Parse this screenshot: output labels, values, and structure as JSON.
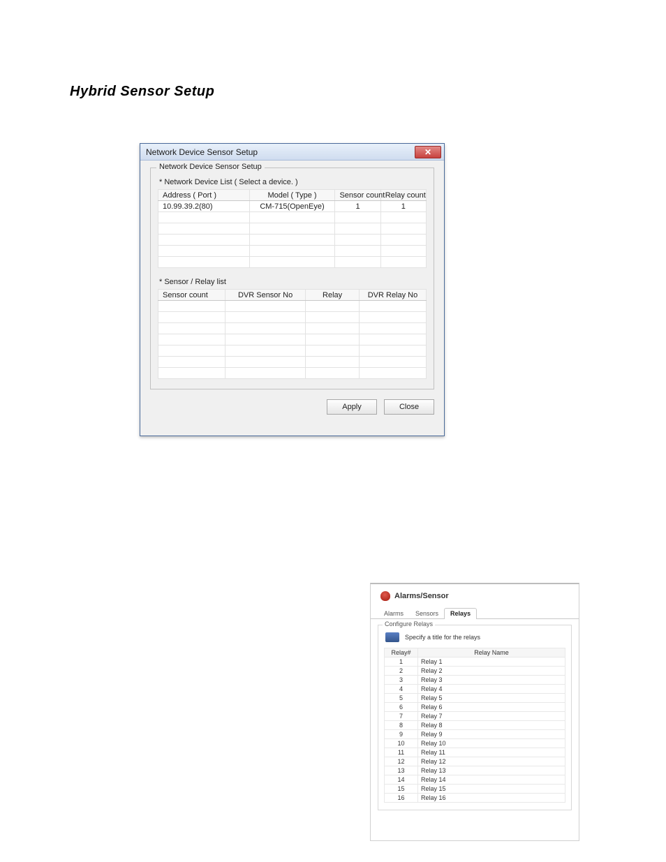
{
  "page_title": "Hybrid Sensor Setup",
  "dialog1": {
    "title": "Network Device Sensor Setup",
    "fieldset_legend": "Network Device Sensor Setup",
    "device_list_label": "* Network Device List ( Select a device. )",
    "device_columns": {
      "address": "Address ( Port )",
      "model": "Model ( Type )",
      "sensor_count": "Sensor count",
      "relay_count": "Relay count"
    },
    "device_rows": [
      {
        "address": "10.99.39.2(80)",
        "model": "CM-715(OpenEye)",
        "sensor_count": "1",
        "relay_count": "1"
      }
    ],
    "device_blank_rows": 5,
    "sr_list_label": "* Sensor / Relay list",
    "sr_columns": {
      "sensor_count": "Sensor count",
      "dvr_sensor_no": "DVR Sensor No",
      "relay": "Relay",
      "dvr_relay_no": "DVR Relay No"
    },
    "sr_blank_rows": 7,
    "apply_label": "Apply",
    "close_label": "Close"
  },
  "panel2": {
    "heading": "Alarms/Sensor",
    "tabs": {
      "alarms": "Alarms",
      "sensors": "Sensors",
      "relays": "Relays"
    },
    "active_tab": "relays",
    "fieldset_legend": "Configure Relays",
    "hint": "Specify a title for the relays",
    "columns": {
      "num": "Relay#",
      "name": "Relay Name"
    },
    "rows": [
      {
        "num": "1",
        "name": "Relay 1"
      },
      {
        "num": "2",
        "name": "Relay 2"
      },
      {
        "num": "3",
        "name": "Relay 3"
      },
      {
        "num": "4",
        "name": "Relay 4"
      },
      {
        "num": "5",
        "name": "Relay 5"
      },
      {
        "num": "6",
        "name": "Relay 6"
      },
      {
        "num": "7",
        "name": "Relay 7"
      },
      {
        "num": "8",
        "name": "Relay 8"
      },
      {
        "num": "9",
        "name": "Relay 9"
      },
      {
        "num": "10",
        "name": "Relay 10"
      },
      {
        "num": "11",
        "name": "Relay 11"
      },
      {
        "num": "12",
        "name": "Relay 12"
      },
      {
        "num": "13",
        "name": "Relay 13"
      },
      {
        "num": "14",
        "name": "Relay 14"
      },
      {
        "num": "15",
        "name": "Relay 15"
      },
      {
        "num": "16",
        "name": "Relay 16"
      }
    ]
  },
  "colors": {
    "titlebar_top": "#e8f0fa",
    "titlebar_bottom": "#cfdcef",
    "close_red": "#c8423f",
    "border_blue": "#4a6a9a",
    "grid_border": "#e2e2e2"
  }
}
